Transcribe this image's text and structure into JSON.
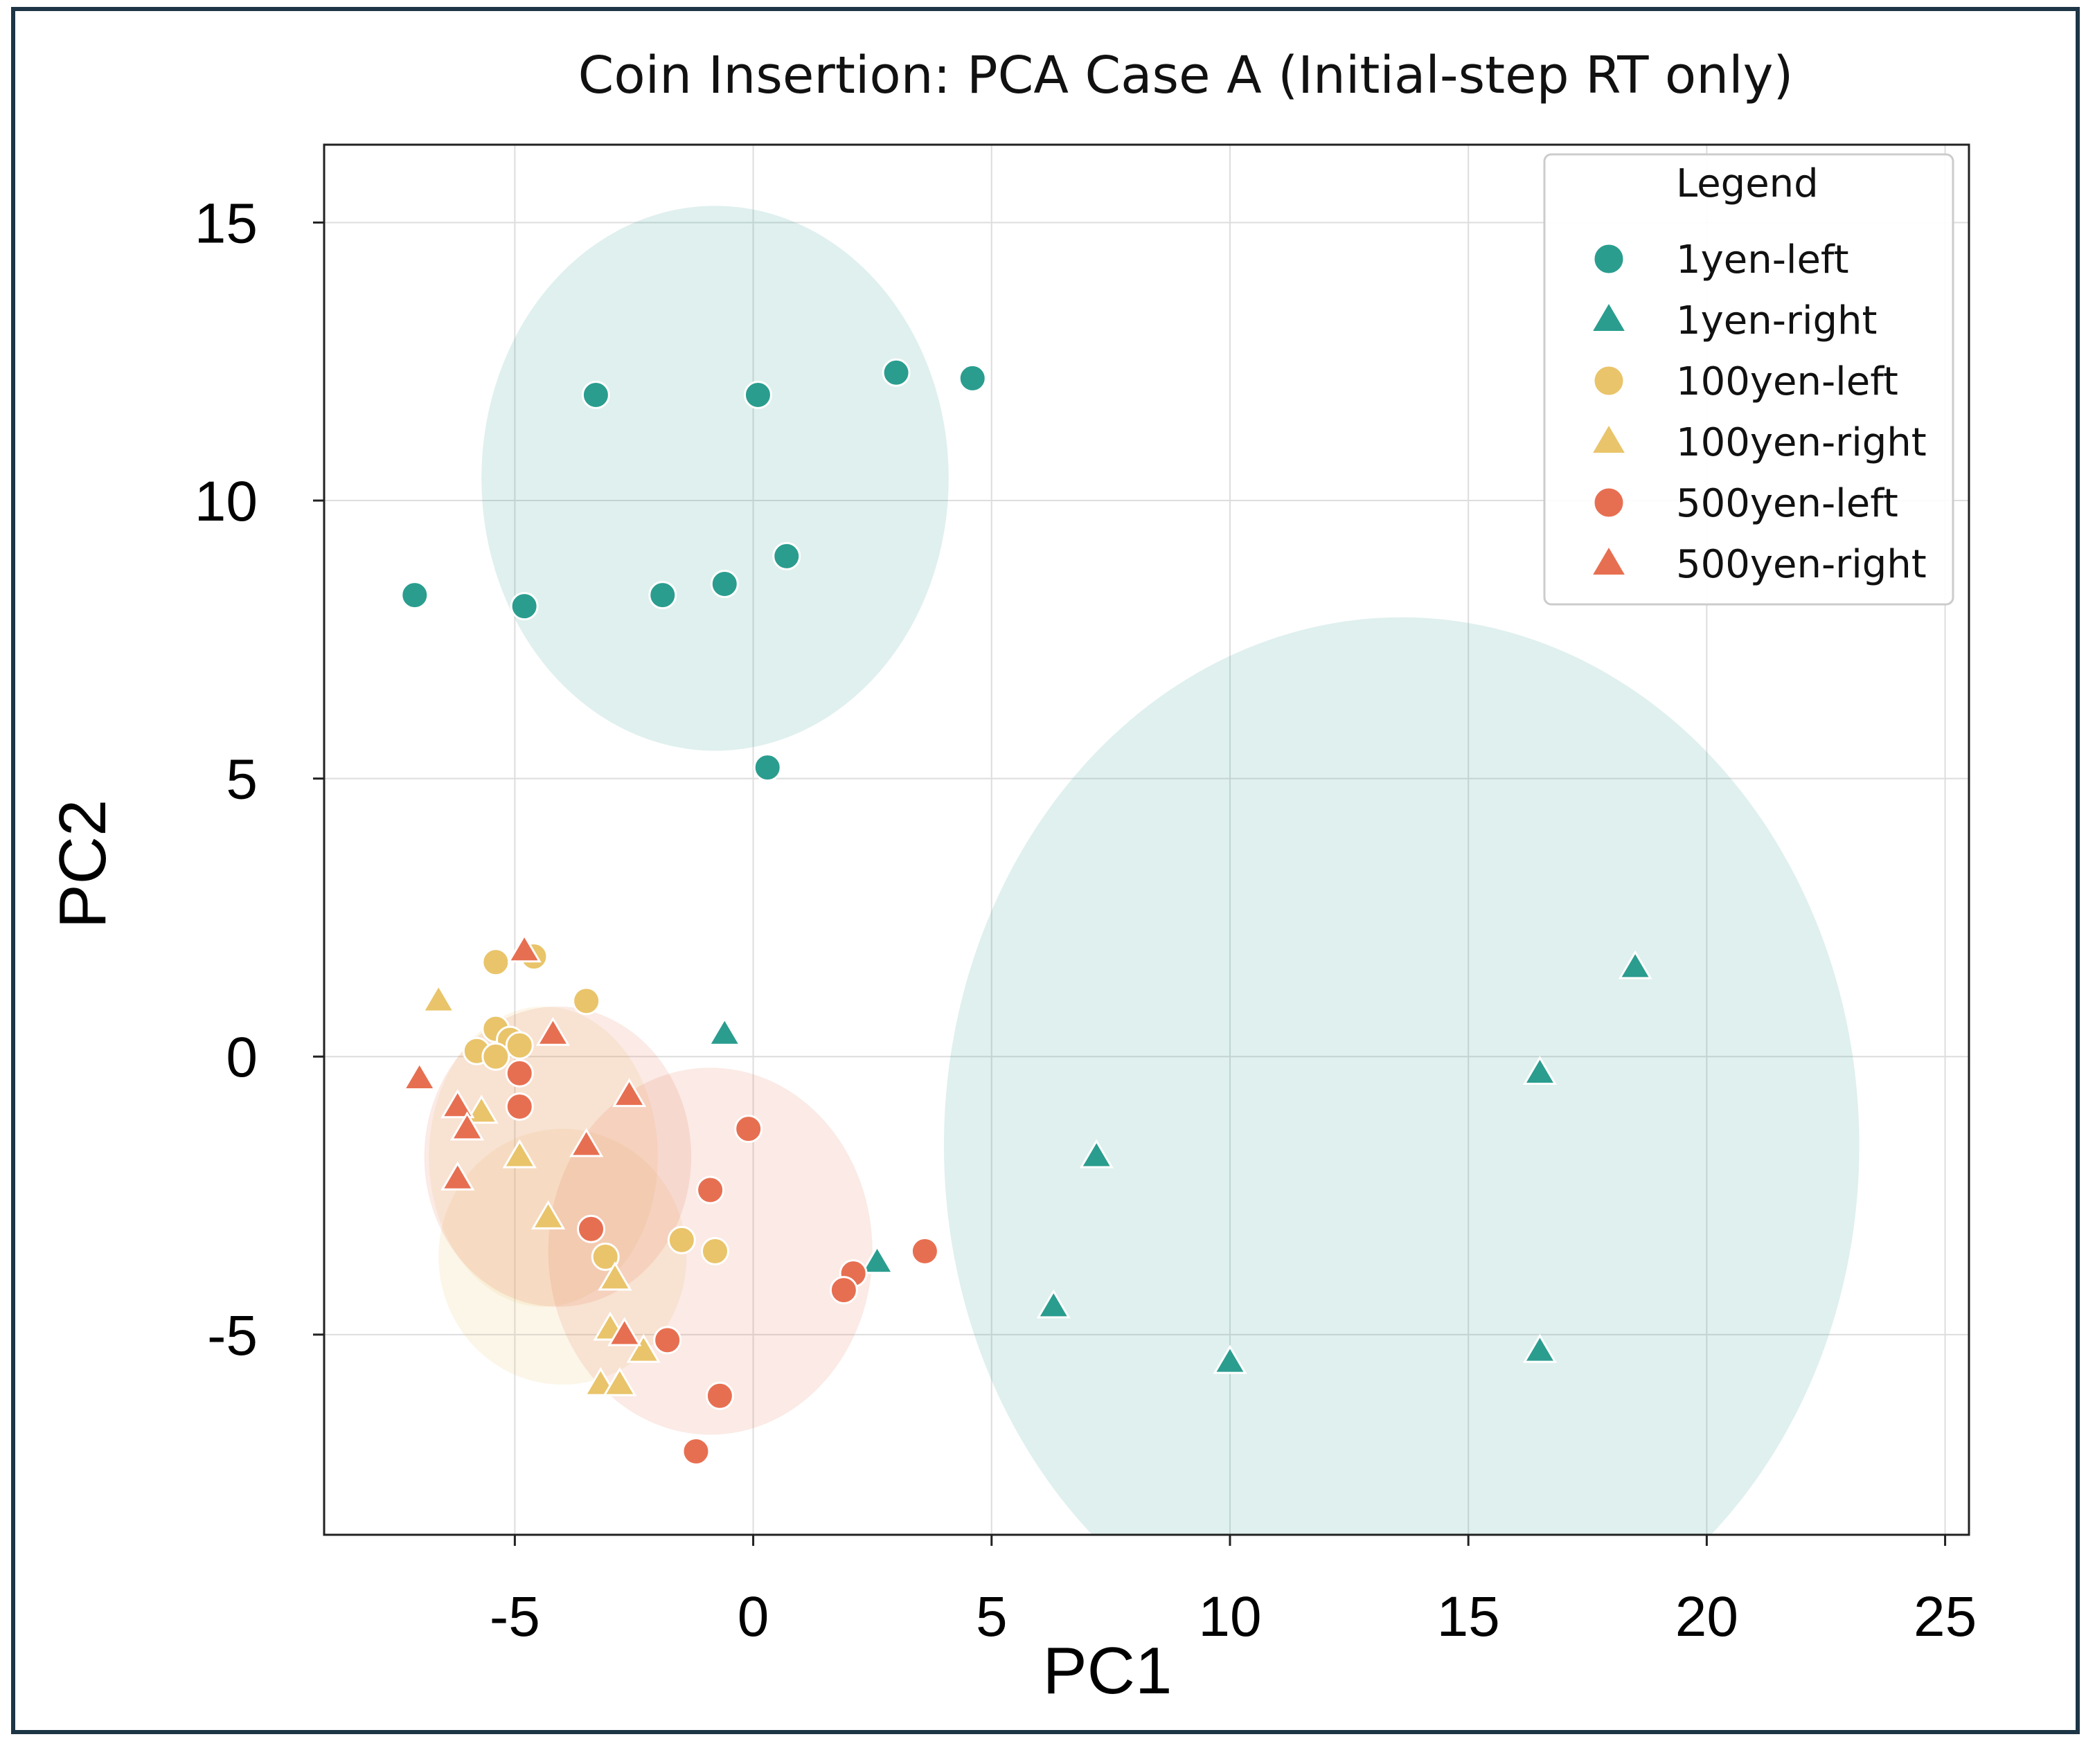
{
  "chart_data": {
    "type": "scatter",
    "title": "Coin Insertion: PCA Case A (Initial-step RT only)",
    "xlabel": "PC1",
    "ylabel": "PC2",
    "xlim": [
      -9,
      25.5
    ],
    "ylim": [
      -8.6,
      16.4
    ],
    "xticks": [
      -5,
      0,
      5,
      10,
      15,
      20,
      25
    ],
    "yticks": [
      -5,
      0,
      5,
      10,
      15
    ],
    "xtick_labels": [
      "-5",
      "0",
      "5",
      "10",
      "15",
      "20",
      "25"
    ],
    "ytick_labels": [
      "-5",
      "0",
      "5",
      "10",
      "15"
    ],
    "grid": true,
    "legend": {
      "title": "Legend",
      "position": "top-right"
    },
    "ellipses": [
      {
        "color": "#2a9d8f",
        "cx": -0.8,
        "cy": 10.4,
        "rx": 4.9,
        "ry": 4.9
      },
      {
        "color": "#2a9d8f",
        "cx": 13.6,
        "cy": -1.6,
        "rx": 9.6,
        "ry": 9.5
      },
      {
        "color": "#e9c46a",
        "cx": -4.4,
        "cy": -1.8,
        "rx": 2.4,
        "ry": 2.7
      },
      {
        "color": "#e9c46a",
        "cx": -4.0,
        "cy": -3.6,
        "rx": 2.6,
        "ry": 2.3
      },
      {
        "color": "#e76f51",
        "cx": -4.1,
        "cy": -1.8,
        "rx": 2.8,
        "ry": 2.7
      },
      {
        "color": "#e76f51",
        "cx": -0.9,
        "cy": -3.5,
        "rx": 3.4,
        "ry": 3.3
      }
    ],
    "series": [
      {
        "name": "1yen-left",
        "marker": "circle",
        "color": "#2a9d8f",
        "x": [
          -3.3,
          0.1,
          3.0,
          4.6,
          -7.1,
          -4.8,
          -1.9,
          -0.6,
          0.7,
          0.3
        ],
        "y": [
          11.9,
          11.9,
          12.3,
          12.2,
          8.3,
          8.1,
          8.3,
          8.5,
          9.0,
          5.2
        ]
      },
      {
        "name": "1yen-right",
        "marker": "triangle",
        "color": "#2a9d8f",
        "x": [
          18.5,
          16.5,
          7.2,
          2.6,
          6.3,
          10.0,
          16.5,
          -0.6
        ],
        "y": [
          1.6,
          -0.3,
          -1.8,
          -3.7,
          -4.5,
          -5.5,
          -5.3,
          0.4
        ]
      },
      {
        "name": "100yen-left",
        "marker": "circle",
        "color": "#e9c46a",
        "x": [
          -5.4,
          -4.6,
          -3.5,
          -5.4,
          -5.8,
          -5.1,
          -4.9,
          -5.4,
          -3.1,
          -1.5,
          -0.8
        ],
        "y": [
          1.7,
          1.8,
          1.0,
          0.5,
          0.1,
          0.3,
          0.2,
          0.0,
          -3.6,
          -3.3,
          -3.5
        ]
      },
      {
        "name": "100yen-right",
        "marker": "triangle",
        "color": "#e9c46a",
        "x": [
          -6.6,
          -5.7,
          -4.9,
          -4.3,
          -2.9,
          -3.0,
          -2.3,
          -3.2,
          -2.8
        ],
        "y": [
          1.0,
          -1.0,
          -1.8,
          -2.9,
          -4.0,
          -4.9,
          -5.3,
          -5.9,
          -5.9
        ]
      },
      {
        "name": "500yen-left",
        "marker": "circle",
        "color": "#e76f51",
        "x": [
          -4.9,
          -4.9,
          -0.1,
          -0.9,
          -3.4,
          3.6,
          2.1,
          1.9,
          -1.8,
          -0.7,
          -1.2
        ],
        "y": [
          -0.3,
          -0.9,
          -1.3,
          -2.4,
          -3.1,
          -3.5,
          -3.9,
          -4.2,
          -5.1,
          -6.1,
          -7.1
        ]
      },
      {
        "name": "500yen-right",
        "marker": "triangle",
        "color": "#e76f51",
        "x": [
          -4.8,
          -4.2,
          -7.0,
          -6.2,
          -6.0,
          -2.6,
          -3.5,
          -6.2,
          -2.7
        ],
        "y": [
          1.9,
          0.4,
          -0.4,
          -0.9,
          -1.3,
          -0.7,
          -1.6,
          -2.2,
          -5.0
        ]
      }
    ]
  }
}
